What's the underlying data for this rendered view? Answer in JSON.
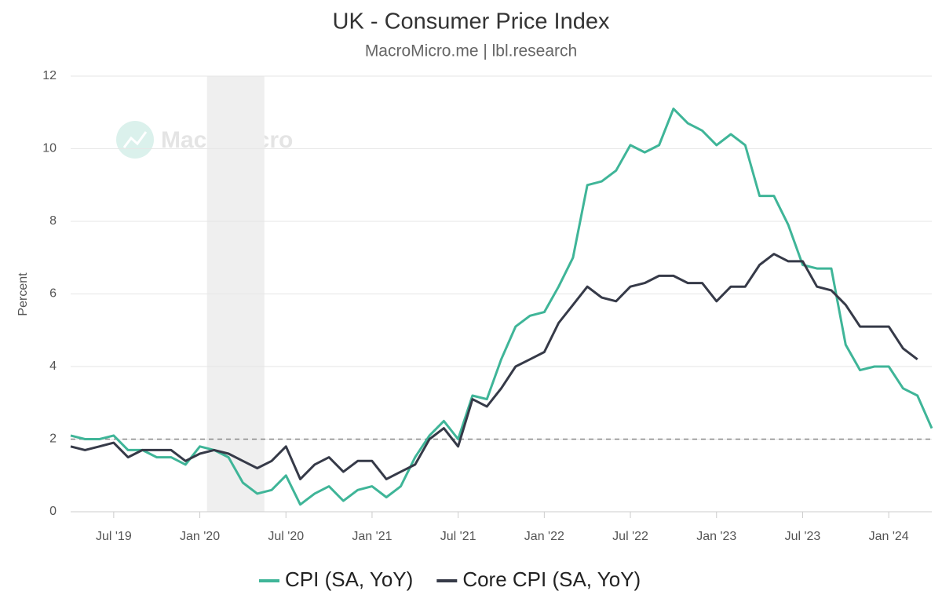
{
  "chart_data": {
    "type": "line",
    "title": "UK - Consumer Price Index",
    "subtitle": "MacroMicro.me | lbl.research",
    "watermark": "MacroMicro",
    "y_label": "Percent",
    "x": [
      "2019-04",
      "2019-05",
      "2019-06",
      "2019-07",
      "2019-08",
      "2019-09",
      "2019-10",
      "2019-11",
      "2019-12",
      "2020-01",
      "2020-02",
      "2020-03",
      "2020-04",
      "2020-05",
      "2020-06",
      "2020-07",
      "2020-08",
      "2020-09",
      "2020-10",
      "2020-11",
      "2020-12",
      "2021-01",
      "2021-02",
      "2021-03",
      "2021-04",
      "2021-05",
      "2021-06",
      "2021-07",
      "2021-08",
      "2021-09",
      "2021-10",
      "2021-11",
      "2021-12",
      "2022-01",
      "2022-02",
      "2022-03",
      "2022-04",
      "2022-05",
      "2022-06",
      "2022-07",
      "2022-08",
      "2022-09",
      "2022-10",
      "2022-11",
      "2022-12",
      "2023-01",
      "2023-02",
      "2023-03",
      "2023-04",
      "2023-05",
      "2023-06",
      "2023-07",
      "2023-08",
      "2023-09",
      "2023-10",
      "2023-11",
      "2023-12",
      "2024-01",
      "2024-02",
      "2024-03",
      "2024-04"
    ],
    "series": [
      {
        "name": "CPI (SA, YoY)",
        "color": "#3fb598",
        "values": [
          2.1,
          2.0,
          2.0,
          2.1,
          1.7,
          1.7,
          1.5,
          1.5,
          1.3,
          1.8,
          1.7,
          1.5,
          0.8,
          0.5,
          0.6,
          1.0,
          0.2,
          0.5,
          0.7,
          0.3,
          0.6,
          0.7,
          0.4,
          0.7,
          1.5,
          2.1,
          2.5,
          2.0,
          3.2,
          3.1,
          4.2,
          5.1,
          5.4,
          5.5,
          6.2,
          7.0,
          9.0,
          9.1,
          9.4,
          10.1,
          9.9,
          10.1,
          11.1,
          10.7,
          10.5,
          10.1,
          10.4,
          10.1,
          8.7,
          8.7,
          7.9,
          6.8,
          6.7,
          6.7,
          4.6,
          3.9,
          4.0,
          4.0,
          3.4,
          3.2,
          2.3
        ]
      },
      {
        "name": "Core CPI (SA, YoY)",
        "color": "#363a48",
        "values": [
          1.8,
          1.7,
          1.8,
          1.9,
          1.5,
          1.7,
          1.7,
          1.7,
          1.4,
          1.6,
          1.7,
          1.6,
          1.4,
          1.2,
          1.4,
          1.8,
          0.9,
          1.3,
          1.5,
          1.1,
          1.4,
          1.4,
          0.9,
          1.1,
          1.3,
          2.0,
          2.3,
          1.8,
          3.1,
          2.9,
          3.4,
          4.0,
          4.2,
          4.4,
          5.2,
          5.7,
          6.2,
          5.9,
          5.8,
          6.2,
          6.3,
          6.5,
          6.5,
          6.3,
          6.3,
          5.8,
          6.2,
          6.2,
          6.8,
          7.1,
          6.9,
          6.9,
          6.2,
          6.1,
          5.7,
          5.1,
          5.1,
          5.1,
          4.5,
          4.2,
          null
        ]
      }
    ],
    "xticks": [
      {
        "value": "2019-07",
        "label": "Jul '19"
      },
      {
        "value": "2020-01",
        "label": "Jan '20"
      },
      {
        "value": "2020-07",
        "label": "Jul '20"
      },
      {
        "value": "2021-01",
        "label": "Jan '21"
      },
      {
        "value": "2021-07",
        "label": "Jul '21"
      },
      {
        "value": "2022-01",
        "label": "Jan '22"
      },
      {
        "value": "2022-07",
        "label": "Jul '22"
      },
      {
        "value": "2023-01",
        "label": "Jan '23"
      },
      {
        "value": "2023-07",
        "label": "Jul '23"
      },
      {
        "value": "2024-01",
        "label": "Jan '24"
      }
    ],
    "ylim": [
      0,
      12
    ],
    "yticks": [
      0,
      2,
      4,
      6,
      8,
      10,
      12
    ],
    "grid": true,
    "reference_line": 2,
    "shaded_region": [
      "2020-02",
      "2020-05"
    ],
    "legend": "bottom"
  }
}
